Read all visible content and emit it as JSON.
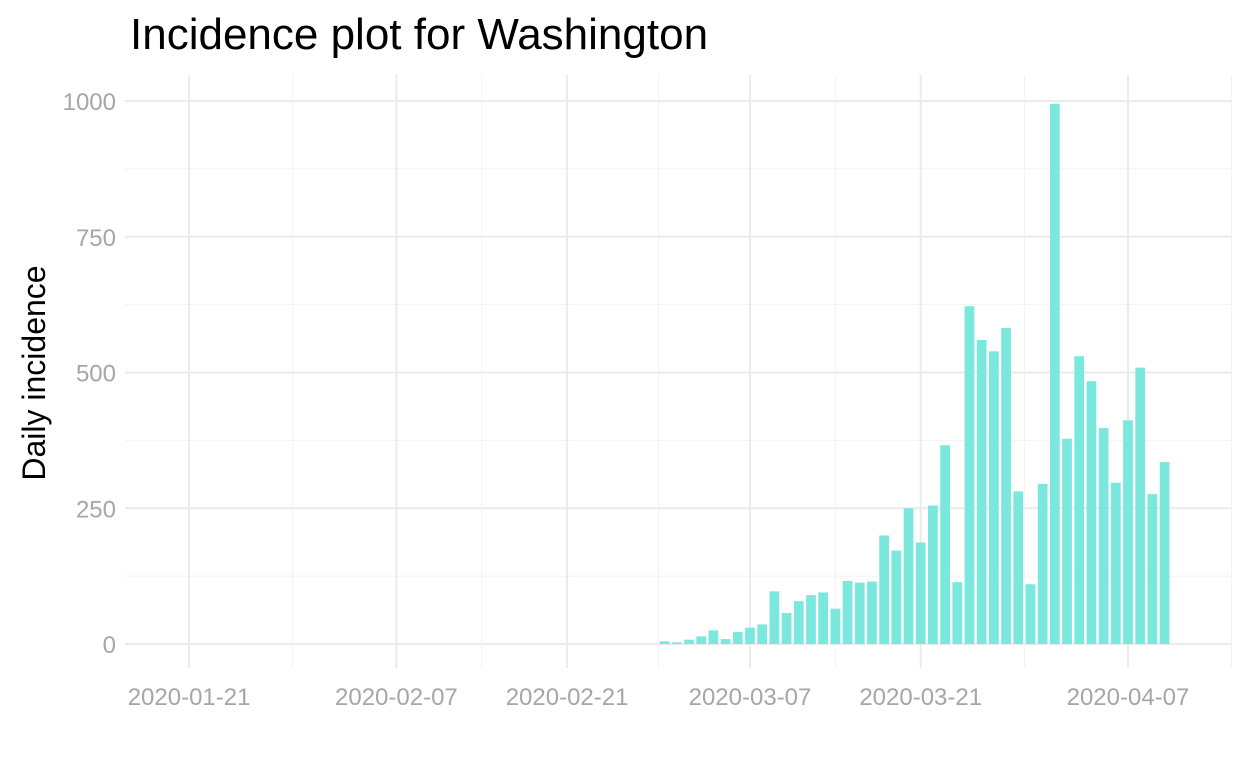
{
  "chart_data": {
    "type": "bar",
    "title": "Incidence plot for Washington",
    "xlabel": "",
    "ylabel": "Daily incidence",
    "bar_color": "#7be8de",
    "grid": true,
    "x_tick_labels": [
      "2020-01-21",
      "2020-02-07",
      "2020-02-21",
      "2020-03-07",
      "2020-03-21",
      "2020-04-07"
    ],
    "y_ticks": [
      0,
      250,
      500,
      750,
      1000
    ],
    "xlim": [
      "2020-01-21",
      "2020-04-12"
    ],
    "ylim": [
      0,
      1000
    ],
    "x": [
      "2020-02-29",
      "2020-03-01",
      "2020-03-02",
      "2020-03-03",
      "2020-03-04",
      "2020-03-05",
      "2020-03-06",
      "2020-03-07",
      "2020-03-08",
      "2020-03-09",
      "2020-03-10",
      "2020-03-11",
      "2020-03-12",
      "2020-03-13",
      "2020-03-14",
      "2020-03-15",
      "2020-03-16",
      "2020-03-17",
      "2020-03-18",
      "2020-03-19",
      "2020-03-20",
      "2020-03-21",
      "2020-03-22",
      "2020-03-23",
      "2020-03-24",
      "2020-03-25",
      "2020-03-26",
      "2020-03-27",
      "2020-03-28",
      "2020-03-29",
      "2020-03-30",
      "2020-03-31",
      "2020-04-01",
      "2020-04-02",
      "2020-04-03",
      "2020-04-04",
      "2020-04-05",
      "2020-04-06",
      "2020-04-07",
      "2020-04-08",
      "2020-04-09",
      "2020-04-10"
    ],
    "values": [
      5,
      3,
      8,
      14,
      25,
      9,
      22,
      30,
      36,
      97,
      57,
      79,
      90,
      95,
      65,
      116,
      113,
      115,
      200,
      172,
      250,
      187,
      255,
      366,
      114,
      622,
      560,
      539,
      582,
      281,
      110,
      295,
      995,
      378,
      530,
      484,
      398,
      297,
      412,
      509,
      276,
      335
    ]
  }
}
